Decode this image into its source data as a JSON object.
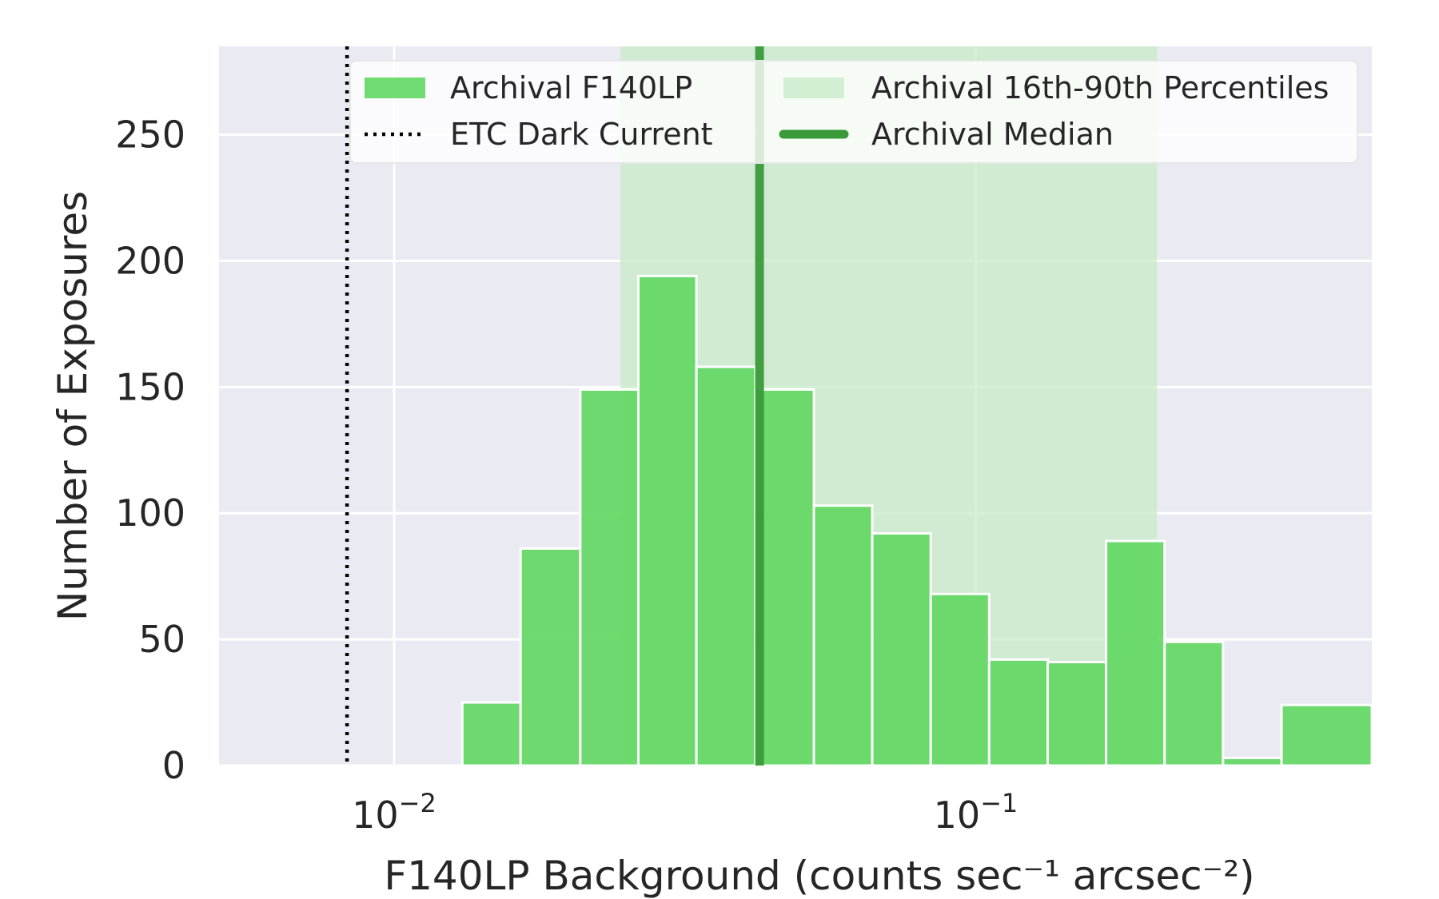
{
  "chart_data": {
    "type": "bar",
    "xscale": "log",
    "xlim": [
      0.005,
      0.48
    ],
    "ylim": [
      0,
      285
    ],
    "xlabel": "F140LP Background (counts sec⁻¹ arcsec⁻²)",
    "ylabel": "Number of Exposures",
    "xticks": [
      {
        "value": 0.01,
        "base": "10",
        "exp": "−2"
      },
      {
        "value": 0.1,
        "base": "10",
        "exp": "−1"
      }
    ],
    "yticks": [
      0,
      50,
      100,
      150,
      200,
      250
    ],
    "grid": true,
    "legend_position": "top-right",
    "bins": [
      {
        "x0": 0.0131,
        "x1": 0.0165,
        "count": 25
      },
      {
        "x0": 0.0165,
        "x1": 0.0209,
        "count": 86
      },
      {
        "x0": 0.0209,
        "x1": 0.0263,
        "count": 149
      },
      {
        "x0": 0.0263,
        "x1": 0.0331,
        "count": 194
      },
      {
        "x0": 0.0331,
        "x1": 0.0418,
        "count": 158
      },
      {
        "x0": 0.0418,
        "x1": 0.0527,
        "count": 149
      },
      {
        "x0": 0.0527,
        "x1": 0.0664,
        "count": 103
      },
      {
        "x0": 0.0664,
        "x1": 0.0837,
        "count": 92
      },
      {
        "x0": 0.0837,
        "x1": 0.1055,
        "count": 68
      },
      {
        "x0": 0.1055,
        "x1": 0.133,
        "count": 42
      },
      {
        "x0": 0.133,
        "x1": 0.1676,
        "count": 41
      },
      {
        "x0": 0.1676,
        "x1": 0.2113,
        "count": 89
      },
      {
        "x0": 0.2113,
        "x1": 0.2663,
        "count": 49
      },
      {
        "x0": 0.2663,
        "x1": 0.3357,
        "count": 3
      },
      {
        "x0": 0.3357,
        "x1": 0.48,
        "count": 24
      }
    ],
    "etc_dark_current": 0.0083,
    "archival_median": 0.0425,
    "percentile_band": [
      0.0245,
      0.205
    ],
    "legend": [
      {
        "label": "Archival F140LP",
        "kind": "patch",
        "color": "#5cd65c"
      },
      {
        "label": "Archival 16th-90th Percentiles",
        "kind": "band",
        "color": "#c7ebc7"
      },
      {
        "label": "ETC Dark Current",
        "kind": "dotted",
        "color": "#000000"
      },
      {
        "label": "Archival Median",
        "kind": "line",
        "color": "#3a9a3a"
      }
    ],
    "colors": {
      "plot_bg": "#eaeaf2",
      "grid": "#ffffff",
      "bar": "#5cd65c",
      "band": "#c7ebc7",
      "median": "#3a9a3a",
      "dark_current": "#000000"
    }
  }
}
